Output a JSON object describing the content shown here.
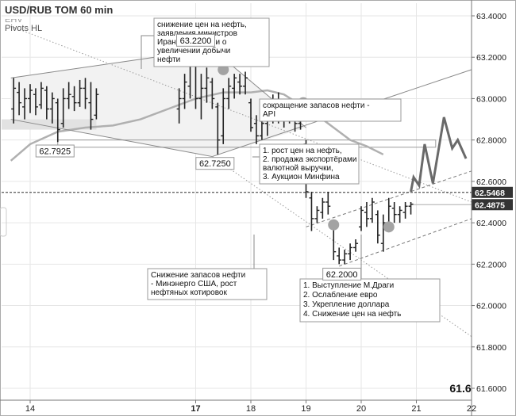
{
  "chart_data": {
    "type": "line",
    "title": "USD/RUB TOM 60 min",
    "indicator_top": "EHV",
    "indicator": "Pivots HL",
    "xlabel": "",
    "ylabel": "",
    "ylim": [
      61.6,
      63.45
    ],
    "xlim": [
      13.65,
      22.0
    ],
    "y_ticks": [
      "63.4000",
      "63.2000",
      "63.0000",
      "62.8000",
      "62.6000",
      "62.4000",
      "62.2000",
      "62.0000",
      "61.8000",
      "61.6000"
    ],
    "x_ticks": [
      {
        "x": 14,
        "label": "14",
        "bold": false
      },
      {
        "x": 17,
        "label": "17",
        "bold": true
      },
      {
        "x": 18,
        "label": "18",
        "bold": false
      },
      {
        "x": 19,
        "label": "19",
        "bold": false
      },
      {
        "x": 20,
        "label": "20",
        "bold": false
      },
      {
        "x": 21,
        "label": "21",
        "bold": false
      },
      {
        "x": 22,
        "label": "22",
        "bold": false
      }
    ],
    "grid": true,
    "bars": [
      {
        "x": 13.7,
        "h": 63.1,
        "l": 62.88,
        "o": 62.95,
        "c": 63.05
      },
      {
        "x": 13.8,
        "h": 63.08,
        "l": 62.92,
        "o": 63.03,
        "c": 62.98
      },
      {
        "x": 13.9,
        "h": 63.05,
        "l": 62.9,
        "o": 62.96,
        "c": 63.0
      },
      {
        "x": 14.0,
        "h": 63.07,
        "l": 62.93,
        "o": 63.0,
        "c": 63.04
      },
      {
        "x": 14.1,
        "h": 63.05,
        "l": 62.92,
        "o": 63.02,
        "c": 62.96
      },
      {
        "x": 14.2,
        "h": 63.08,
        "l": 62.95,
        "o": 62.97,
        "c": 63.05
      },
      {
        "x": 14.3,
        "h": 63.06,
        "l": 62.9,
        "o": 63.04,
        "c": 62.95
      },
      {
        "x": 14.4,
        "h": 63.03,
        "l": 62.88,
        "o": 62.95,
        "c": 63.0
      },
      {
        "x": 14.5,
        "h": 63.0,
        "l": 62.79,
        "o": 62.98,
        "c": 62.85
      },
      {
        "x": 14.6,
        "h": 63.05,
        "l": 62.86,
        "o": 62.88,
        "c": 63.0
      },
      {
        "x": 14.7,
        "h": 63.08,
        "l": 62.95,
        "o": 63.0,
        "c": 63.02
      },
      {
        "x": 14.8,
        "h": 63.06,
        "l": 62.94,
        "o": 63.01,
        "c": 62.98
      },
      {
        "x": 14.9,
        "h": 63.09,
        "l": 62.96,
        "o": 62.98,
        "c": 63.05
      },
      {
        "x": 15.0,
        "h": 63.1,
        "l": 62.95,
        "o": 63.05,
        "c": 63.0
      },
      {
        "x": 15.1,
        "h": 63.08,
        "l": 62.85,
        "o": 62.98,
        "c": 62.9
      },
      {
        "x": 15.2,
        "h": 63.05,
        "l": 62.9,
        "o": 62.92,
        "c": 63.02
      },
      {
        "x": 16.7,
        "h": 63.05,
        "l": 62.88,
        "o": 62.95,
        "c": 63.0
      },
      {
        "x": 16.8,
        "h": 63.12,
        "l": 62.95,
        "o": 63.0,
        "c": 63.08
      },
      {
        "x": 16.9,
        "h": 63.2,
        "l": 63.0,
        "o": 63.06,
        "c": 63.18
      },
      {
        "x": 17.0,
        "h": 63.22,
        "l": 62.95,
        "o": 63.18,
        "c": 63.0
      },
      {
        "x": 17.1,
        "h": 63.12,
        "l": 62.9,
        "o": 63.0,
        "c": 63.05
      },
      {
        "x": 17.2,
        "h": 63.15,
        "l": 62.98,
        "o": 63.05,
        "c": 63.1
      },
      {
        "x": 17.3,
        "h": 63.1,
        "l": 62.95,
        "o": 63.08,
        "c": 63.0
      },
      {
        "x": 17.4,
        "h": 62.98,
        "l": 62.73,
        "o": 62.96,
        "c": 62.8
      },
      {
        "x": 17.5,
        "h": 63.05,
        "l": 62.78,
        "o": 62.82,
        "c": 63.0
      },
      {
        "x": 17.6,
        "h": 63.1,
        "l": 62.95,
        "o": 63.0,
        "c": 63.06
      },
      {
        "x": 17.7,
        "h": 63.12,
        "l": 63.0,
        "o": 63.05,
        "c": 63.1
      },
      {
        "x": 17.8,
        "h": 63.12,
        "l": 63.02,
        "o": 63.08,
        "c": 63.06
      },
      {
        "x": 17.9,
        "h": 63.13,
        "l": 63.02,
        "o": 63.06,
        "c": 63.1
      },
      {
        "x": 18.0,
        "h": 63.0,
        "l": 62.84,
        "o": 62.98,
        "c": 62.86
      },
      {
        "x": 18.1,
        "h": 62.92,
        "l": 62.78,
        "o": 62.88,
        "c": 62.82
      },
      {
        "x": 18.2,
        "h": 62.92,
        "l": 62.8,
        "o": 62.82,
        "c": 62.88
      },
      {
        "x": 18.3,
        "h": 62.95,
        "l": 62.82,
        "o": 62.88,
        "c": 62.9
      },
      {
        "x": 18.4,
        "h": 63.02,
        "l": 62.88,
        "o": 62.9,
        "c": 62.98
      },
      {
        "x": 18.5,
        "h": 63.03,
        "l": 62.88,
        "o": 62.96,
        "c": 62.92
      },
      {
        "x": 18.6,
        "h": 62.98,
        "l": 62.86,
        "o": 62.92,
        "c": 62.95
      },
      {
        "x": 18.7,
        "h": 62.97,
        "l": 62.88,
        "o": 62.94,
        "c": 62.92
      },
      {
        "x": 18.8,
        "h": 62.96,
        "l": 62.84,
        "o": 62.92,
        "c": 62.88
      },
      {
        "x": 18.9,
        "h": 62.98,
        "l": 62.85,
        "o": 62.88,
        "c": 62.95
      },
      {
        "x": 19.0,
        "h": 62.8,
        "l": 62.52,
        "o": 62.78,
        "c": 62.55
      },
      {
        "x": 19.1,
        "h": 62.55,
        "l": 62.36,
        "o": 62.52,
        "c": 62.42
      },
      {
        "x": 19.2,
        "h": 62.48,
        "l": 62.4,
        "o": 62.42,
        "c": 62.46
      },
      {
        "x": 19.3,
        "h": 62.52,
        "l": 62.42,
        "o": 62.45,
        "c": 62.5
      },
      {
        "x": 19.4,
        "h": 62.55,
        "l": 62.44,
        "o": 62.5,
        "c": 62.48
      },
      {
        "x": 19.5,
        "h": 62.4,
        "l": 62.22,
        "o": 62.38,
        "c": 62.26
      },
      {
        "x": 19.6,
        "h": 62.28,
        "l": 62.2,
        "o": 62.24,
        "c": 62.22
      },
      {
        "x": 19.7,
        "h": 62.27,
        "l": 62.2,
        "o": 62.22,
        "c": 62.25
      },
      {
        "x": 19.8,
        "h": 62.3,
        "l": 62.22,
        "o": 62.25,
        "c": 62.28
      },
      {
        "x": 19.9,
        "h": 62.32,
        "l": 62.26,
        "o": 62.28,
        "c": 62.3
      },
      {
        "x": 20.0,
        "h": 62.48,
        "l": 62.36,
        "o": 62.38,
        "c": 62.46
      },
      {
        "x": 20.1,
        "h": 62.5,
        "l": 62.38,
        "o": 62.45,
        "c": 62.42
      },
      {
        "x": 20.2,
        "h": 62.52,
        "l": 62.4,
        "o": 62.42,
        "c": 62.5
      },
      {
        "x": 20.3,
        "h": 62.46,
        "l": 62.3,
        "o": 62.44,
        "c": 62.34
      },
      {
        "x": 20.4,
        "h": 62.44,
        "l": 62.26,
        "o": 62.3,
        "c": 62.4
      },
      {
        "x": 20.5,
        "h": 62.52,
        "l": 62.38,
        "o": 62.4,
        "c": 62.48
      },
      {
        "x": 20.6,
        "h": 62.5,
        "l": 62.4,
        "o": 62.47,
        "c": 62.44
      },
      {
        "x": 20.7,
        "h": 62.48,
        "l": 62.4,
        "o": 62.44,
        "c": 62.46
      },
      {
        "x": 20.8,
        "h": 62.5,
        "l": 62.42,
        "o": 62.45,
        "c": 62.48
      },
      {
        "x": 20.9,
        "h": 62.5,
        "l": 62.44,
        "o": 62.48,
        "c": 62.49
      }
    ],
    "moving_average": [
      {
        "x": 13.65,
        "y": 62.7
      },
      {
        "x": 14.0,
        "y": 62.78
      },
      {
        "x": 14.5,
        "y": 62.84
      },
      {
        "x": 15.0,
        "y": 62.86
      },
      {
        "x": 15.5,
        "y": 62.87
      },
      {
        "x": 16.0,
        "y": 62.9
      },
      {
        "x": 16.5,
        "y": 62.95
      },
      {
        "x": 17.0,
        "y": 63.0
      },
      {
        "x": 17.5,
        "y": 63.03
      },
      {
        "x": 18.0,
        "y": 63.03
      },
      {
        "x": 18.3,
        "y": 63.04
      },
      {
        "x": 18.6,
        "y": 63.02
      },
      {
        "x": 18.9,
        "y": 62.97
      },
      {
        "x": 19.2,
        "y": 62.92
      },
      {
        "x": 19.5,
        "y": 62.86
      },
      {
        "x": 19.8,
        "y": 62.8
      },
      {
        "x": 20.1,
        "y": 62.77
      },
      {
        "x": 20.4,
        "y": 62.73
      }
    ],
    "forecast": [
      {
        "x": 20.9,
        "y": 62.55
      },
      {
        "x": 20.95,
        "y": 62.62
      },
      {
        "x": 21.05,
        "y": 62.58
      },
      {
        "x": 21.15,
        "y": 62.78
      },
      {
        "x": 21.3,
        "y": 62.59
      },
      {
        "x": 21.5,
        "y": 62.91
      },
      {
        "x": 21.65,
        "y": 62.76
      },
      {
        "x": 21.75,
        "y": 62.8
      },
      {
        "x": 21.9,
        "y": 62.71
      }
    ],
    "levels": [
      {
        "y": 62.5468,
        "label": "62.5468",
        "style": "dashed"
      },
      {
        "y": 62.4875,
        "label": "62.4875",
        "style": "solid"
      }
    ],
    "trendlines": [
      {
        "x1": 13.65,
        "y1": 62.9,
        "x2": 17.3,
        "y2": 62.72,
        "style": "solid"
      },
      {
        "x1": 13.65,
        "y1": 63.1,
        "x2": 17.3,
        "y2": 63.24,
        "style": "solid"
      },
      {
        "x1": 17.3,
        "y1": 63.24,
        "x2": 19.0,
        "y2": 62.86,
        "style": "solid"
      },
      {
        "x1": 17.3,
        "y1": 62.72,
        "x2": 22.0,
        "y2": 63.14,
        "style": "solid"
      },
      {
        "x1": 13.65,
        "y1": 63.35,
        "x2": 22.0,
        "y2": 62.5,
        "style": "dotted"
      },
      {
        "x1": 17.3,
        "y1": 62.72,
        "x2": 22.0,
        "y2": 61.85,
        "style": "dotted"
      },
      {
        "x1": 19.0,
        "y1": 62.38,
        "x2": 22.0,
        "y2": 62.65,
        "style": "dashed"
      },
      {
        "x1": 19.6,
        "y1": 62.19,
        "x2": 22.0,
        "y2": 62.42,
        "style": "dashed"
      }
    ],
    "channel_fill": [
      {
        "x": 13.65,
        "y": 63.1
      },
      {
        "x": 17.3,
        "y": 63.24
      },
      {
        "x": 19.0,
        "y": 62.86
      },
      {
        "x": 17.3,
        "y": 62.72
      },
      {
        "x": 13.65,
        "y": 62.9
      }
    ],
    "pivot_labels": [
      {
        "text": "63.2200",
        "x": 17.0,
        "y": 63.28
      },
      {
        "text": "62.7925",
        "x": 14.45,
        "y": 62.745
      },
      {
        "text": "62.7250",
        "x": 17.35,
        "y": 62.685
      },
      {
        "text": "62.2000",
        "x": 19.65,
        "y": 62.15
      }
    ],
    "news_markers": [
      {
        "x": 17.5,
        "y": 63.14
      },
      {
        "x": 18.95,
        "y": 62.98
      },
      {
        "x": 19.0,
        "y": 62.71
      },
      {
        "x": 19.5,
        "y": 62.39
      },
      {
        "x": 20.5,
        "y": 62.38
      }
    ],
    "news_notes": [
      {
        "lines": [
          "снижение цен на нефть,",
          "заявления министров",
          "Ирана и Нигерии о",
          "увеличении добычи",
          "нефти"
        ]
      },
      {
        "lines": [
          "сокращение запасов нефти -",
          "API"
        ]
      },
      {
        "lines": [
          "1. рост цен на нефть,",
          "2. продажа экспортёрами",
          "валютной выручки,",
          "3. Аукцион Минфина"
        ]
      },
      {
        "lines": [
          "Снижение запасов нефти",
          "- Минэнерго США, рост",
          "нефтяных котировок"
        ]
      },
      {
        "lines": [
          "1. Выступление М.Драги",
          "2. Ослабление евро",
          "3. Укрепление доллара",
          "4. Снижение цен на нефть"
        ]
      }
    ],
    "corner_value": "61.6"
  }
}
